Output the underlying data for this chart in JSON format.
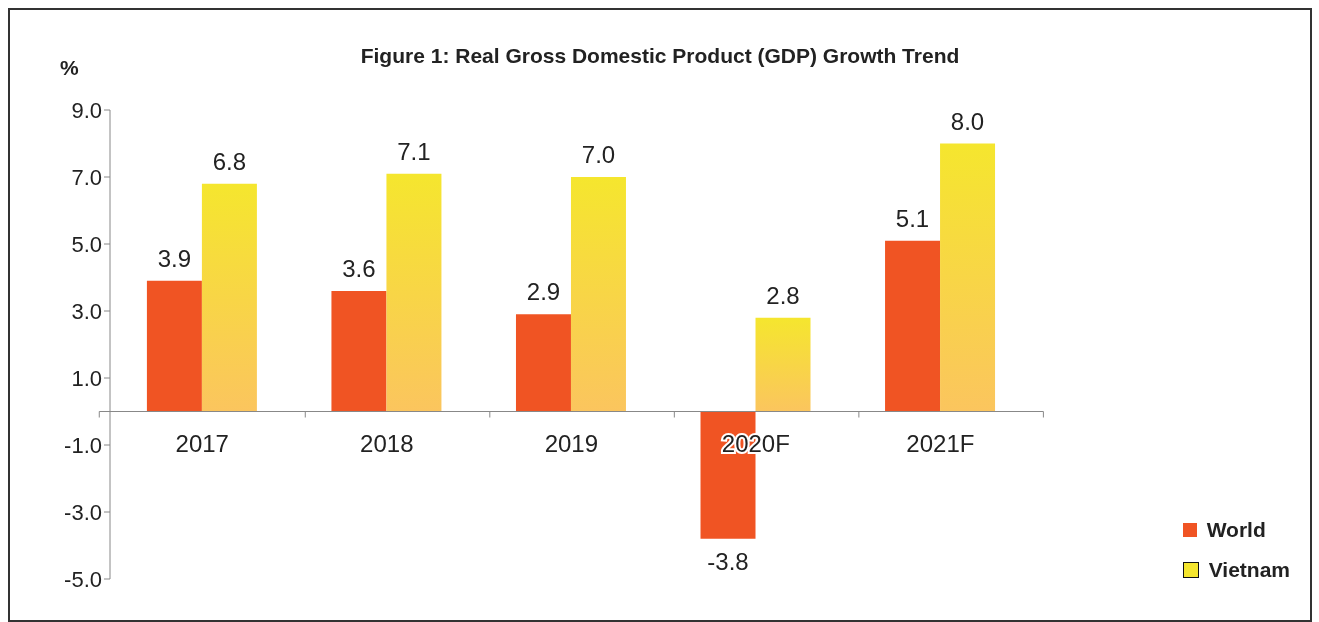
{
  "chart_data": {
    "type": "bar",
    "title": "Figure 1: Real Gross Domestic Product (GDP) Growth Trend",
    "ylabel": "%",
    "categories": [
      "2017",
      "2018",
      "2019",
      "2020F",
      "2021F"
    ],
    "series": [
      {
        "name": "World",
        "color": "#f05423",
        "values": [
          3.9,
          3.6,
          2.9,
          -3.8,
          5.1
        ],
        "value_labels": [
          "3.9",
          "3.6",
          "2.9",
          "-3.8",
          "5.1"
        ]
      },
      {
        "name": "Vietnam",
        "color": "#f5e62e",
        "values": [
          6.8,
          7.1,
          7.0,
          2.8,
          8.0
        ],
        "value_labels": [
          "6.8",
          "7.1",
          "7.0",
          "2.8",
          "8.0"
        ]
      }
    ],
    "ylim": [
      -5,
      9
    ],
    "yticks": [
      {
        "value": -5,
        "label": "-5.0"
      },
      {
        "value": -3,
        "label": "-3.0"
      },
      {
        "value": -1,
        "label": "-1.0"
      },
      {
        "value": 1,
        "label": "1.0"
      },
      {
        "value": 3,
        "label": "3.0"
      },
      {
        "value": 5,
        "label": "5.0"
      },
      {
        "value": 7,
        "label": "7.0"
      },
      {
        "value": 9,
        "label": "9.0"
      }
    ],
    "legend": "bottom right"
  }
}
